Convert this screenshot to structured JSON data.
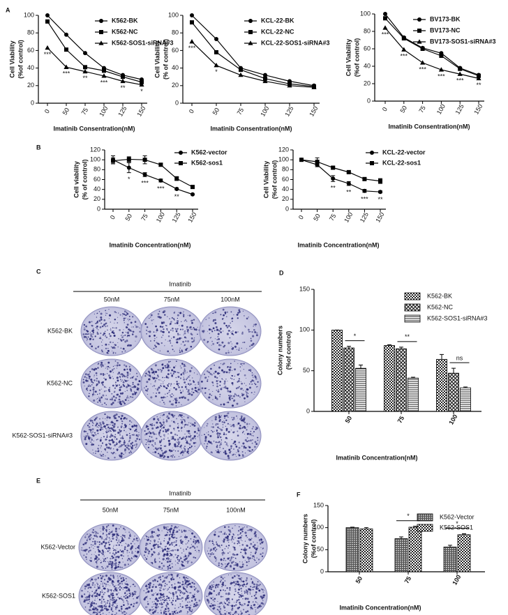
{
  "panel_labels": [
    "A",
    "B",
    "C",
    "D",
    "E",
    "F"
  ],
  "chart_data": [
    {
      "type": "line",
      "categories": [
        "0",
        "50",
        "75",
        "100",
        "125",
        "150"
      ],
      "ylabel": [
        "Cell Viability",
        "(%of control)"
      ],
      "xlabel": "Imatinib Consentration(nM)",
      "ylim": [
        0,
        100
      ],
      "yticks": [
        0,
        20,
        40,
        60,
        80,
        100
      ],
      "series": [
        {
          "name": "K562-BK",
          "marker": "circle",
          "color": "#000000",
          "values": [
            100,
            78,
            57,
            40,
            32,
            27
          ]
        },
        {
          "name": "K562-NC",
          "marker": "square",
          "color": "#000000",
          "values": [
            93,
            61,
            41,
            37,
            30,
            24
          ]
        },
        {
          "name": "K562-SOS1-siRNA#3",
          "marker": "triangle",
          "color": "#000000",
          "values": [
            63,
            41,
            36,
            31,
            25,
            21
          ]
        }
      ],
      "annotations": [
        "***",
        "***",
        "**",
        "***",
        "**",
        "*"
      ]
    },
    {
      "type": "line",
      "categories": [
        "0",
        "50",
        "75",
        "100",
        "125",
        "150"
      ],
      "ylabel": [
        "Cell Viability",
        "(% of control)"
      ],
      "xlabel": "Imatinib Consentration(nM)",
      "ylim": [
        0,
        100
      ],
      "yticks": [
        0,
        20,
        40,
        60,
        80,
        100
      ],
      "series": [
        {
          "name": "KCL-22-BK",
          "marker": "circle",
          "color": "#000000",
          "values": [
            100,
            73,
            40,
            32,
            25,
            20
          ]
        },
        {
          "name": "KCL-22-NC",
          "marker": "square",
          "color": "#000000",
          "values": [
            92,
            58,
            38,
            28,
            22,
            19
          ]
        },
        {
          "name": "KCL-22-SOS1-siRNA#3",
          "marker": "triangle",
          "color": "#000000",
          "values": [
            70,
            43,
            32,
            25,
            20,
            18
          ]
        }
      ],
      "annotations": [
        "***",
        "*",
        null,
        null,
        null,
        null
      ]
    },
    {
      "type": "line",
      "categories": [
        "0",
        "50",
        "75",
        "100",
        "125",
        "150"
      ],
      "ylabel": [
        "Cell Viability",
        "(%of control)"
      ],
      "xlabel": "Imatinib Consentration(nM)",
      "ylim": [
        0,
        100
      ],
      "yticks": [
        0,
        20,
        40,
        60,
        80,
        100
      ],
      "series": [
        {
          "name": "BV173-BK",
          "marker": "circle",
          "color": "#000000",
          "values": [
            100,
            73,
            61,
            55,
            38,
            30
          ]
        },
        {
          "name": "BV173-NC",
          "marker": "square",
          "color": "#000000",
          "values": [
            95,
            72,
            60,
            52,
            37,
            29
          ]
        },
        {
          "name": "BV173-SOS1-siRNA#3",
          "marker": "triangle",
          "color": "#000000",
          "values": [
            84,
            59,
            44,
            36,
            31,
            26
          ]
        }
      ],
      "annotations": [
        "***",
        "***",
        "***",
        "***",
        "***",
        "**"
      ]
    },
    {
      "type": "line",
      "categories": [
        "0",
        "50",
        "75",
        "100",
        "125",
        "150"
      ],
      "ylabel": [
        "Cell viability",
        "(% of control)"
      ],
      "xlabel": "Imatinib Concentration(nM)",
      "ylim": [
        0,
        120
      ],
      "yticks": [
        0,
        20,
        40,
        60,
        80,
        100,
        120
      ],
      "series": [
        {
          "name": "K562-vector",
          "marker": "circle",
          "color": "#000000",
          "values": [
            100,
            84,
            70,
            58,
            41,
            30
          ],
          "errors": [
            8,
            10,
            4,
            3,
            2,
            1
          ]
        },
        {
          "name": "K562-sos1",
          "marker": "square",
          "color": "#000000",
          "values": [
            98,
            101,
            100,
            90,
            62,
            45
          ],
          "errors": [
            6,
            5,
            8,
            3,
            4,
            1
          ]
        }
      ],
      "annotations": [
        null,
        "*",
        "***",
        "***",
        "**",
        null
      ]
    },
    {
      "type": "line",
      "categories": [
        "0",
        "50",
        "75",
        "100",
        "125",
        "150"
      ],
      "ylabel": [
        "Cell Viability",
        "(%of control)"
      ],
      "xlabel": "Imatinib Concentration(nM)",
      "ylim": [
        0,
        120
      ],
      "yticks": [
        0,
        20,
        40,
        60,
        80,
        100,
        120
      ],
      "series": [
        {
          "name": "KCL-22-vector",
          "marker": "circle",
          "color": "#000000",
          "values": [
            100,
            90,
            62,
            52,
            37,
            35
          ],
          "errors": [
            3,
            4,
            6,
            4,
            3,
            2
          ]
        },
        {
          "name": "KCL-22-sos1",
          "marker": "square",
          "color": "#000000",
          "values": [
            100,
            96,
            84,
            75,
            61,
            57
          ],
          "errors": [
            3,
            8,
            3,
            2,
            2,
            5
          ]
        }
      ],
      "annotations": [
        null,
        null,
        "**",
        "**",
        "***",
        "**"
      ]
    },
    {
      "type": "bar",
      "categories": [
        "50",
        "75",
        "100"
      ],
      "ylabel": [
        "Colony numbers",
        "(%of control)"
      ],
      "xlabel": "Imatinib Concentration(nM)",
      "ylim": [
        0,
        150
      ],
      "yticks": [
        0,
        50,
        100,
        150
      ],
      "series": [
        {
          "name": "K562-BK",
          "pattern": "checker",
          "color": "#000000",
          "values": [
            100,
            81,
            64
          ],
          "errors": [
            0,
            1,
            6
          ]
        },
        {
          "name": "K562-NC",
          "pattern": "diamond",
          "color": "#000000",
          "values": [
            78,
            77,
            47
          ],
          "errors": [
            2,
            2,
            6
          ]
        },
        {
          "name": "K562-SOS1-siRNA#3",
          "pattern": "hlines",
          "color": "#000000",
          "values": [
            53,
            41,
            29
          ],
          "errors": [
            4,
            1,
            1
          ]
        }
      ],
      "significance": [
        "*",
        "**",
        "ns"
      ]
    },
    {
      "type": "bar",
      "categories": [
        "50",
        "75",
        "100"
      ],
      "ylabel": [
        "Colony numbers",
        "(%of control)"
      ],
      "xlabel": "Imatinib Concentration(nM)",
      "ylim": [
        0,
        150
      ],
      "yticks": [
        0,
        50,
        100,
        150
      ],
      "series": [
        {
          "name": "K562-Vector",
          "pattern": "dense",
          "color": "#000000",
          "values": [
            100,
            75,
            56
          ],
          "errors": [
            1,
            4,
            4
          ]
        },
        {
          "name": "K562-SOS1",
          "pattern": "checker",
          "color": "#000000",
          "values": [
            97,
            101,
            84
          ],
          "errors": [
            3,
            2,
            2
          ]
        }
      ],
      "significance": [
        null,
        "*",
        "*"
      ]
    }
  ],
  "colony_assays": [
    {
      "header": "Imatinib",
      "columns": [
        "50nM",
        "75nM",
        "100nM"
      ],
      "rows": [
        "K562-BK",
        "K562-NC",
        "K562-SOS1-siRNA#3"
      ]
    },
    {
      "header": "Imatinib",
      "columns": [
        "50nM",
        "75nM",
        "100nM"
      ],
      "rows": [
        "K562-Vector",
        "K562-SOS1"
      ]
    }
  ]
}
